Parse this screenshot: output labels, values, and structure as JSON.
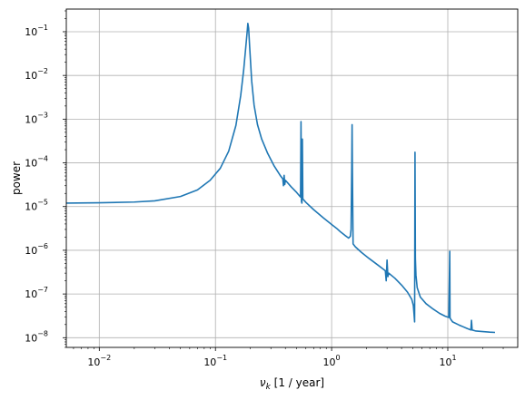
{
  "chart_data": {
    "type": "line",
    "title": "",
    "xlabel_main": "ν",
    "xlabel_sub": "k",
    "xlabel_rest": " [1 / year]",
    "ylabel": "power",
    "xscale": "log",
    "yscale": "log",
    "xlim": [
      0.0052,
      40
    ],
    "ylim": [
      6e-09,
      0.33
    ],
    "grid": true,
    "x_tick_labels": [
      "10",
      "10",
      "10",
      "10"
    ],
    "x_tick_exponents": [
      "−2",
      "−1",
      "0",
      "1"
    ],
    "x_tick_values": [
      0.01,
      0.1,
      1,
      10
    ],
    "y_tick_labels": [
      "10",
      "10",
      "10",
      "10",
      "10",
      "10",
      "10",
      "10"
    ],
    "y_tick_exponents": [
      "−8",
      "−7",
      "−6",
      "−5",
      "−4",
      "−3",
      "−2",
      "−1"
    ],
    "y_tick_values": [
      1e-08,
      1e-07,
      1e-06,
      1e-05,
      0.0001,
      0.001,
      0.01,
      0.1
    ],
    "series_color": "#1f77b4",
    "series": [
      {
        "x": [
          0.0052,
          0.01,
          0.02,
          0.03,
          0.05,
          0.07,
          0.09,
          0.11,
          0.13,
          0.15,
          0.165,
          0.175,
          0.182,
          0.187,
          0.19,
          0.193,
          0.197,
          0.205,
          0.215,
          0.23,
          0.25,
          0.28,
          0.32,
          0.36,
          0.38,
          0.385,
          0.39,
          0.395,
          0.4,
          0.45,
          0.5,
          0.54,
          0.545,
          0.55,
          0.555,
          0.56,
          0.565,
          0.6,
          0.7,
          0.85,
          1.0,
          1.1,
          1.2,
          1.3,
          1.4,
          1.45,
          1.47,
          1.49,
          1.5,
          1.51,
          1.53,
          1.6,
          1.8,
          2.1,
          2.5,
          2.9,
          2.95,
          3.0,
          3.05,
          3.1,
          3.5,
          4.0,
          4.5,
          4.9,
          5.05,
          5.12,
          5.18,
          5.22,
          5.26,
          5.32,
          5.45,
          5.8,
          6.5,
          7.5,
          8.5,
          9.5,
          10.2,
          10.4,
          10.45,
          10.5,
          10.55,
          11.0,
          12.5,
          14.5,
          15.8,
          16.0,
          16.2,
          17.5,
          20,
          23,
          25.5
        ],
        "y": [
          1.2e-05,
          1.22e-05,
          1.27e-05,
          1.35e-05,
          1.7e-05,
          2.4e-05,
          4e-05,
          7.5e-05,
          0.000185,
          0.00072,
          0.0035,
          0.0135,
          0.042,
          0.092,
          0.155,
          0.12,
          0.045,
          0.0075,
          0.0021,
          0.00075,
          0.00035,
          0.00017,
          8.5e-05,
          5.2e-05,
          4.3e-05,
          3e-05,
          5.2e-05,
          3.2e-05,
          4e-05,
          2.8e-05,
          2.1e-05,
          1.65e-05,
          0.00088,
          1.3e-05,
          1.2e-05,
          0.00035,
          1.5e-05,
          1.25e-05,
          8.5e-06,
          5.5e-06,
          3.9e-06,
          3.2e-06,
          2.6e-06,
          2.2e-06,
          1.9e-06,
          2.1e-06,
          3e-06,
          8e-05,
          0.00075,
          6e-05,
          1.4e-06,
          1.2e-06,
          9e-07,
          6.5e-07,
          4.6e-07,
          3.4e-07,
          2e-07,
          6e-07,
          2.5e-07,
          3e-07,
          2.3e-07,
          1.6e-07,
          1.1e-07,
          7.5e-08,
          5.5e-08,
          3.5e-08,
          2.3e-08,
          0.000175,
          6.5e-07,
          2.7e-07,
          1.4e-07,
          8.5e-08,
          6e-08,
          4.5e-08,
          3.6e-08,
          3.1e-08,
          2.9e-08,
          9.5e-07,
          2.8e-08,
          2.8e-08,
          2.7e-08,
          2.3e-08,
          1.95e-08,
          1.65e-08,
          1.5e-08,
          2.5e-08,
          1.5e-08,
          1.42e-08,
          1.38e-08,
          1.34e-08,
          1.32e-08
        ]
      }
    ]
  }
}
